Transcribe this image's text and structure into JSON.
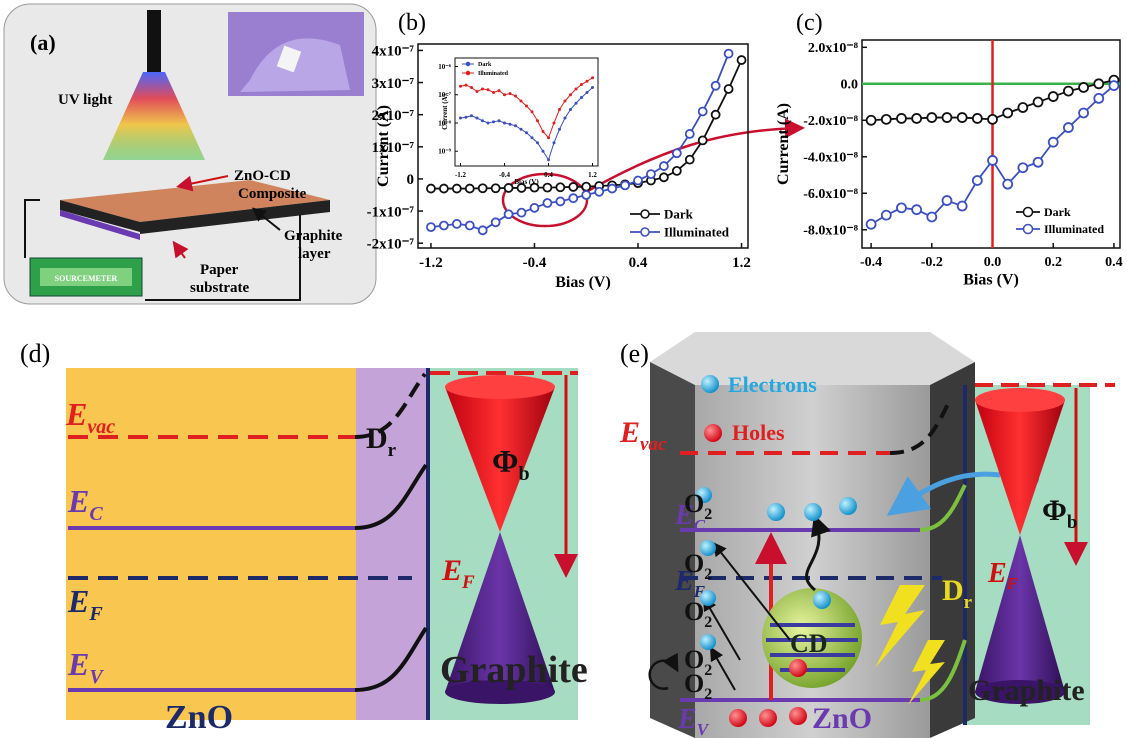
{
  "panels": {
    "a": {
      "label": "(a)",
      "uv_light": "UV light",
      "composite": "ZnO-CD",
      "composite_2": "Composite",
      "graphite": "Graphite",
      "graphite_2": "layer",
      "paper": "Paper",
      "paper_2": "substrate",
      "meter": "SOURCEMETER"
    },
    "d": {
      "label": "(d)",
      "e_vac": {
        "symbol": "E",
        "sub": "vac"
      },
      "e_c": {
        "symbol": "E",
        "sub": "C"
      },
      "e_f": {
        "symbol": "E",
        "sub": "F"
      },
      "e_v": {
        "symbol": "E",
        "sub": "V"
      },
      "d_r": {
        "symbol": "D",
        "sub": "r"
      },
      "phi_b": {
        "symbol": "Φ",
        "sub": "b"
      },
      "graphite_e_f": {
        "symbol": "E",
        "sub": "F"
      },
      "zno": "ZnO",
      "graphite": "Graphite"
    },
    "e": {
      "label": "(e)",
      "electrons": "Electrons",
      "holes": "Holes",
      "e_vac": {
        "symbol": "E",
        "sub": "vac"
      },
      "e_c": {
        "symbol": "E",
        "sub": "C"
      },
      "e_f": {
        "symbol": "E",
        "sub": "F"
      },
      "e_v": {
        "symbol": "E",
        "sub": "V"
      },
      "o2": [
        {
          "symbol": "O",
          "sub": "2"
        },
        {
          "symbol": "O",
          "sub": "2"
        },
        {
          "symbol": "O",
          "sub": "2"
        },
        {
          "symbol": "O",
          "sub": "2"
        }
      ],
      "o2_cycle": {
        "symbol": "O",
        "sub": "2"
      },
      "cd": "CD",
      "d_r": {
        "symbol": "D",
        "sub": "r"
      },
      "phi_b": {
        "symbol": "Φ",
        "sub": "b"
      },
      "graphite_e_f": {
        "symbol": "E",
        "sub": "F"
      },
      "zno": "ZnO",
      "graphite": "Graphite"
    }
  },
  "chart_data": [
    {
      "type": "line",
      "label": "(b)",
      "x_label": "Bias (V)",
      "y_label": "Current (A)",
      "xlim": [
        -1.3,
        1.25
      ],
      "xticks": [
        -1.2,
        -0.4,
        0.4,
        1.2
      ],
      "ylim": [
        -2.15e-07,
        4.2e-07
      ],
      "yticks": [
        {
          "value": 4e-07,
          "label": "4x10⁻⁷"
        },
        {
          "value": 3e-07,
          "label": "3x10⁻⁷"
        },
        {
          "value": 2e-07,
          "label": "2x10⁻⁷"
        },
        {
          "value": 1e-07,
          "label": "1x10⁻⁷"
        },
        0,
        {
          "value": -1e-07,
          "label": "-1x10⁻⁷"
        },
        {
          "value": -2e-07,
          "label": "-2x10⁻⁷"
        }
      ],
      "legend": "lower right",
      "x": [
        -1.2,
        -1.1,
        -1.0,
        -0.9,
        -0.8,
        -0.7,
        -0.6,
        -0.5,
        -0.4,
        -0.3,
        -0.2,
        -0.1,
        0.0,
        0.1,
        0.2,
        0.3,
        0.4,
        0.5,
        0.6,
        0.7,
        0.8,
        0.9,
        1.0,
        1.1,
        1.2
      ],
      "series": [
        {
          "name": "Dark",
          "color": "#111111",
          "marker": "circle",
          "values": [
            -3e-08,
            -3e-08,
            -3e-08,
            -3e-08,
            -2.9e-08,
            -2.9e-08,
            -2.8e-08,
            -2.8e-08,
            -2.7e-08,
            -2.7e-08,
            -2.6e-08,
            -2.5e-08,
            -2.4e-08,
            -2.2e-08,
            -2e-08,
            -1.7e-08,
            -1.3e-08,
            -5e-09,
            5e-09,
            2.5e-08,
            6e-08,
            1.2e-07,
            2e-07,
            2.8e-07,
            3.7e-07
          ]
        },
        {
          "name": "Illuminated",
          "color": "#3b4fc4",
          "marker": "circle",
          "values": [
            -1.5e-07,
            -1.45e-07,
            -1.4e-07,
            -1.45e-07,
            -1.6e-07,
            -1.35e-07,
            -1.1e-07,
            -1.05e-07,
            -9e-08,
            -7.5e-08,
            -7e-08,
            -6e-08,
            -5e-08,
            -4e-08,
            -3e-08,
            -2e-08,
            -5e-09,
            1.5e-08,
            4e-08,
            8e-08,
            1.4e-07,
            2.1e-07,
            2.9e-07,
            3.9e-07,
            null
          ]
        }
      ],
      "inset": {
        "type": "line",
        "x_label": "Bias (V)",
        "y_label": "Current (A)",
        "log_y": true,
        "xlim": [
          -1.3,
          1.3
        ],
        "xticks": [
          -1.2,
          -0.4,
          0.4,
          1.2
        ],
        "ylim": [
          3e-10,
          2e-06
        ],
        "yticks": [
          {
            "value": 1e-09,
            "label": "10⁻⁹"
          },
          {
            "value": 1e-08,
            "label": "10⁻⁸"
          },
          {
            "value": 1e-07,
            "label": "10⁻⁷"
          },
          {
            "value": 1e-06,
            "label": "10⁻⁶"
          }
        ],
        "legend": "upper left",
        "x": [
          -1.2,
          -1.1,
          -1.0,
          -0.9,
          -0.8,
          -0.7,
          -0.6,
          -0.5,
          -0.4,
          -0.3,
          -0.2,
          -0.1,
          0.0,
          0.1,
          0.2,
          0.3,
          0.4,
          0.5,
          0.6,
          0.7,
          0.8,
          0.9,
          1.0,
          1.1,
          1.2
        ],
        "series": [
          {
            "name": "Dark",
            "color": "#3b4fc4",
            "marker": "dot",
            "values": [
              1.5e-08,
              1.6e-08,
              1.8e-08,
              1.5e-08,
              1.2e-08,
              1e-08,
              1.1e-08,
              1.2e-08,
              1e-08,
              9e-09,
              8e-09,
              6e-09,
              4.5e-09,
              3e-09,
              2e-09,
              1e-09,
              5e-10,
              2e-09,
              6e-09,
              1.5e-08,
              3e-08,
              5e-08,
              8e-08,
              1.2e-07,
              1.8e-07
            ]
          },
          {
            "name": "Illuminated",
            "color": "#e02020",
            "marker": "dot",
            "values": [
              2e-07,
              2.2e-07,
              1.8e-07,
              1.3e-07,
              1.6e-07,
              1.5e-07,
              1.2e-07,
              1.4e-07,
              1e-07,
              1.1e-07,
              9e-08,
              6e-08,
              4e-08,
              2.5e-08,
              1.2e-08,
              5e-09,
              3e-09,
              1e-08,
              3e-08,
              6e-08,
              1e-07,
              1.6e-07,
              2.3e-07,
              3e-07,
              4e-07
            ]
          }
        ]
      }
    },
    {
      "type": "line",
      "label": "(c)",
      "x_label": "Bias (V)",
      "y_label": "Current (A)",
      "xlim": [
        -0.43,
        0.42
      ],
      "xticks": [
        -0.4,
        -0.2,
        {
          "value": 0,
          "label": "0.0"
        },
        0.2,
        0.4
      ],
      "ylim": [
        -9e-08,
        2.4e-08
      ],
      "yticks": [
        {
          "value": 2e-08,
          "label": "2.0x10⁻⁸"
        },
        {
          "value": 0,
          "label": "0.0"
        },
        {
          "value": -2e-08,
          "label": "-2.0x10⁻⁸"
        },
        {
          "value": -4e-08,
          "label": "-4.0x10⁻⁸"
        },
        {
          "value": -6e-08,
          "label": "-6.0x10⁻⁸"
        },
        {
          "value": -8e-08,
          "label": "-8.0x10⁻⁸"
        }
      ],
      "hline": {
        "value": 0,
        "color": "#3cb34a"
      },
      "vline": {
        "value": 0,
        "color": "#e02020"
      },
      "legend": "lower right",
      "x": [
        -0.4,
        -0.35,
        -0.3,
        -0.25,
        -0.2,
        -0.15,
        -0.1,
        -0.05,
        0.0,
        0.05,
        0.1,
        0.15,
        0.2,
        0.25,
        0.3,
        0.35,
        0.4
      ],
      "series": [
        {
          "name": "Dark",
          "color": "#111111",
          "marker": "circle",
          "values": [
            -2e-08,
            -1.95e-08,
            -1.9e-08,
            -1.9e-08,
            -1.85e-08,
            -1.85e-08,
            -1.85e-08,
            -1.9e-08,
            -1.95e-08,
            -1.6e-08,
            -1.3e-08,
            -1e-08,
            -7e-09,
            -4e-09,
            -2e-09,
            0,
            2e-09
          ]
        },
        {
          "name": "Illuminated",
          "color": "#3b4fc4",
          "marker": "circle",
          "values": [
            -7.7e-08,
            -7.2e-08,
            -6.8e-08,
            -6.9e-08,
            -7.3e-08,
            -6.4e-08,
            -6.7e-08,
            -5.3e-08,
            -4.2e-08,
            -5.5e-08,
            -4.6e-08,
            -4.3e-08,
            -3.2e-08,
            -2.4e-08,
            -1.6e-08,
            -8e-09,
            -1e-09
          ]
        }
      ]
    }
  ]
}
